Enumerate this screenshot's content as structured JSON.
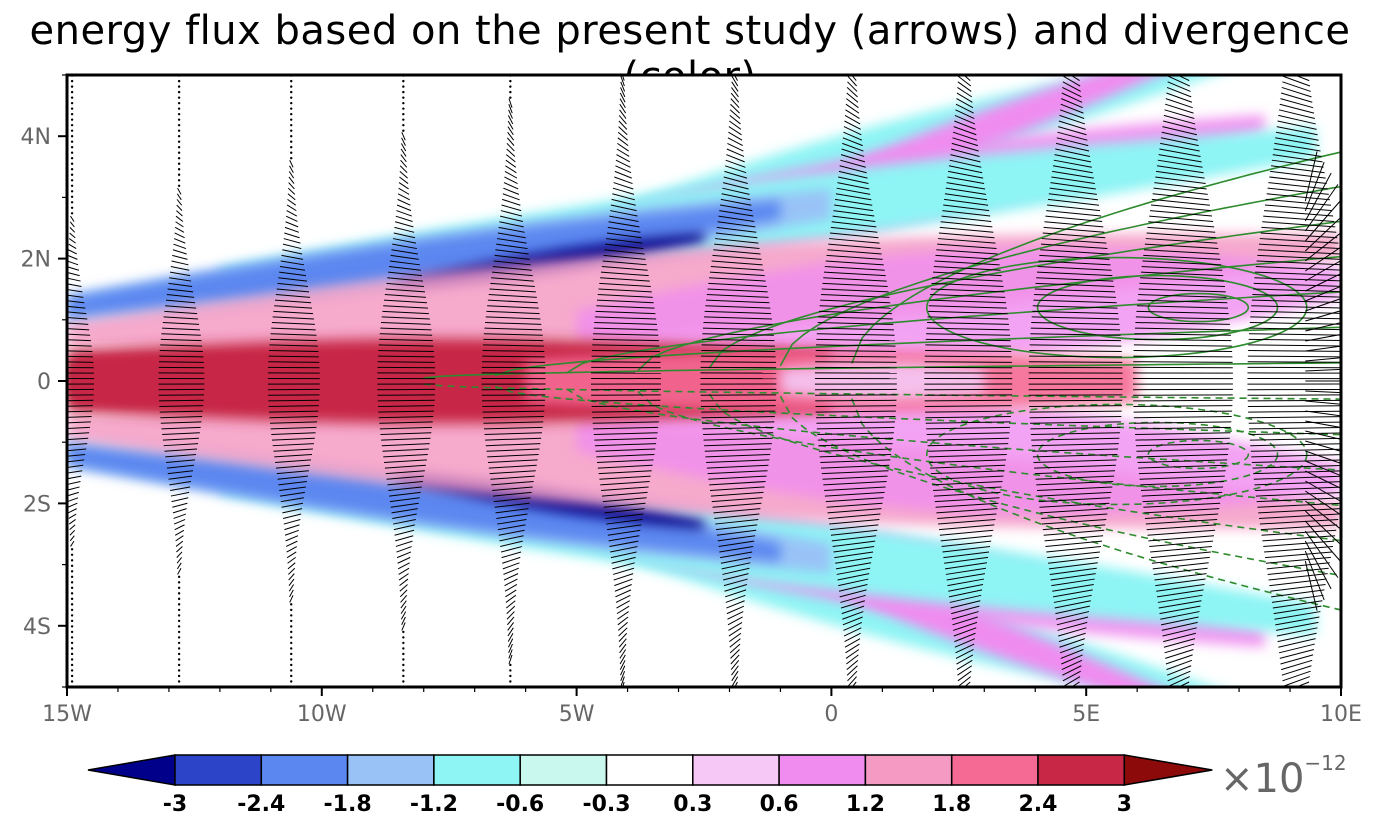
{
  "title": "energy flux based on the present study (arrows) and divergence (color)",
  "axes": {
    "x_ticks": [
      "15W",
      "10W",
      "5W",
      "0",
      "5E",
      "10E"
    ],
    "x_values": [
      -15,
      -10,
      -5,
      0,
      5,
      10
    ],
    "y_ticks": [
      "4N",
      "2N",
      "0",
      "2S",
      "4S"
    ],
    "y_values": [
      4,
      2,
      0,
      -2,
      -4
    ],
    "xlim": [
      -15,
      10
    ],
    "ylim": [
      -5,
      5
    ]
  },
  "colorbar": {
    "labels": [
      "-3",
      "-2.4",
      "-1.8",
      "-1.2",
      "-0.6",
      "-0.3",
      "0.3",
      "0.6",
      "1.2",
      "1.8",
      "2.4",
      "3"
    ],
    "colors": [
      "#00008b",
      "#2b44c8",
      "#5b87f0",
      "#99c3f7",
      "#8ef4f4",
      "#c8f8ee",
      "#ffffff",
      "#f5c8f5",
      "#f08cf0",
      "#f59bc3",
      "#f56a95",
      "#c82846",
      "#8c0a0a"
    ],
    "scale_base": "×10",
    "scale_exp": "−12"
  },
  "chart_data": {
    "type": "heatmap",
    "title": "energy flux based on the present study (arrows) and divergence (color)",
    "variables": [
      "energy flux (arrows)",
      "divergence (color)",
      "contours (green)"
    ],
    "x_range": [
      -15,
      10
    ],
    "y_range": [
      -5,
      5
    ],
    "levels": [
      -3,
      -2.4,
      -1.8,
      -1.2,
      -0.6,
      -0.3,
      0.3,
      0.6,
      1.2,
      1.8,
      2.4,
      3
    ],
    "units_scale": "1e-12",
    "arrow_columns_lon": [
      -14.9,
      -12.8,
      -10.6,
      -8.4,
      -6.3,
      -4.1,
      -1.9,
      0.4,
      2.6,
      4.7,
      6.8,
      9.1
    ],
    "contour_levels_visible": 7
  }
}
